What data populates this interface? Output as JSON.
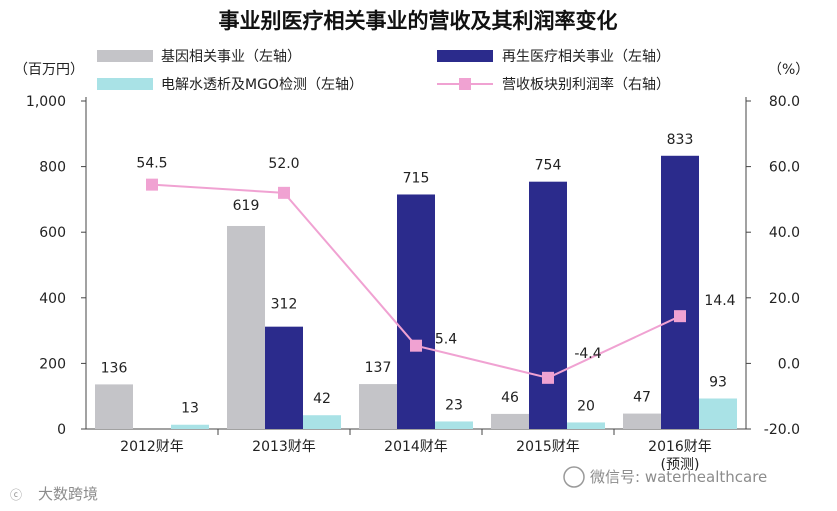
{
  "chart_data": {
    "type": "bar",
    "title": "事业别医疗相关事业的营收及其利润率变化",
    "ylabel_left": "（百万円）",
    "ylabel_right": "（%）",
    "categories": [
      "2012财年",
      "2013财年",
      "2014财年",
      "2015财年",
      "2016财年"
    ],
    "category_notes": [
      "",
      "",
      "",
      "",
      "(预测)"
    ],
    "ylim_left": [
      0,
      1000
    ],
    "yticks_left": [
      "0",
      "200",
      "400",
      "600",
      "800",
      "1,000"
    ],
    "ylim_right": [
      -20,
      80
    ],
    "yticks_right": [
      "-20.0",
      "0.0",
      "20.0",
      "40.0",
      "60.0",
      "80.0"
    ],
    "series": [
      {
        "name": "基因相关事业（左轴）",
        "type": "bar",
        "axis": "left",
        "color": "#c4c4c8",
        "values": [
          136,
          619,
          137,
          46,
          47
        ],
        "labels": [
          "136",
          "619",
          "137",
          "46",
          "47"
        ]
      },
      {
        "name": "再生医疗相关事业（左轴）",
        "type": "bar",
        "axis": "left",
        "color": "#2b2b8c",
        "values": [
          0,
          312,
          715,
          754,
          833
        ],
        "labels": [
          "",
          "312",
          "715",
          "754",
          "833"
        ]
      },
      {
        "name": "电解水透析及MGO检测（左轴）",
        "type": "bar",
        "axis": "left",
        "color": "#a9e2e6",
        "values": [
          13,
          42,
          23,
          20,
          93
        ],
        "labels": [
          "13",
          "42",
          "23",
          "20",
          "93"
        ]
      },
      {
        "name": "营收板块别利润率（右轴）",
        "type": "line",
        "axis": "right",
        "color": "#f0a2d2",
        "values": [
          54.5,
          52.0,
          5.4,
          -4.4,
          14.4
        ],
        "labels": [
          "54.5",
          "52.0",
          "5.4",
          "-4.4",
          "14.4"
        ]
      }
    ],
    "watermark_right": "微信号: waterhealthcare",
    "watermark_left": "大数跨境"
  }
}
